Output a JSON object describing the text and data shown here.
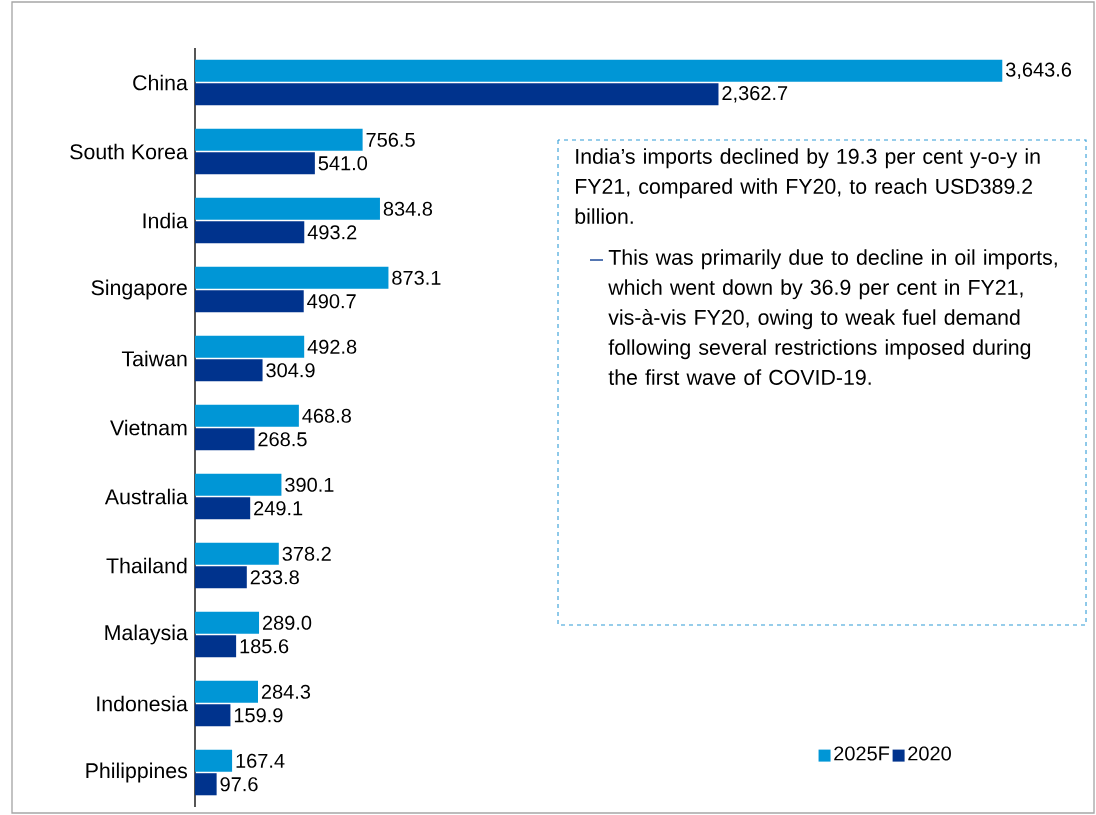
{
  "chart_data": {
    "type": "bar",
    "orientation": "horizontal",
    "categories": [
      "China",
      "South Korea",
      "India",
      "Singapore",
      "Taiwan",
      "Vietnam",
      "Australia",
      "Thailand",
      "Malaysia",
      "Indonesia",
      "Philippines"
    ],
    "series": [
      {
        "name": "2025F",
        "color": "#0096d6",
        "values": [
          3643.6,
          756.5,
          834.8,
          873.1,
          492.8,
          468.8,
          390.1,
          378.2,
          289.0,
          284.3,
          167.4
        ],
        "value_labels": [
          "3,643.6",
          "756.5",
          "834.8",
          "873.1",
          "492.8",
          "468.8",
          "390.1",
          "378.2",
          "289.0",
          "284.3",
          "167.4"
        ]
      },
      {
        "name": "2020",
        "color": "#00338d",
        "values": [
          2362.7,
          541.0,
          493.2,
          490.7,
          304.9,
          268.5,
          249.1,
          233.8,
          185.6,
          159.9,
          97.6
        ],
        "value_labels": [
          "2,362.7",
          "541.0",
          "493.2",
          "490.7",
          "304.9",
          "268.5",
          "249.1",
          "233.8",
          "185.6",
          "159.9",
          "97.6"
        ]
      }
    ],
    "legend": "bottom right",
    "annotations": [
      "India’s imports declined by 19.3 per cent y-o-y in FY21, compared with FY20, to reach USD389.2 billion.",
      "This was primarily due to decline in oil imports, which went down by 36.9 per cent in FY21, vis-à-vis FY20, owing to weak fuel demand following several restrictions imposed during the first wave of COVID-19."
    ]
  }
}
